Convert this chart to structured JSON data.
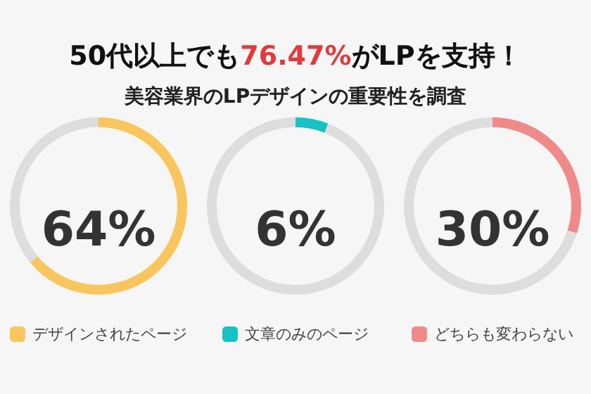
{
  "chart_data": [
    {
      "type": "donut",
      "title": "50代以上でも76.47%がLPを支持！",
      "subtitle": "美容業界のLPデザインの重要性を調査",
      "categories": [
        "デザインされたページ",
        null
      ],
      "values": [
        64,
        36
      ],
      "colors": [
        "#f9c55e",
        "#dddddd"
      ],
      "annotations": [
        "64%"
      ],
      "legend": "bottom"
    },
    {
      "type": "donut",
      "categories": [
        "文章のみのページ",
        null
      ],
      "values": [
        6,
        94
      ],
      "colors": [
        "#17c1c4",
        "#dddddd"
      ],
      "annotations": [
        "6%"
      ],
      "legend": "bottom"
    },
    {
      "type": "donut",
      "categories": [
        "どちらも変わらない",
        null
      ],
      "values": [
        30,
        70
      ],
      "colors": [
        "#f08a8a",
        "#dddddd"
      ],
      "annotations": [
        "30%"
      ],
      "legend": "bottom"
    }
  ]
}
